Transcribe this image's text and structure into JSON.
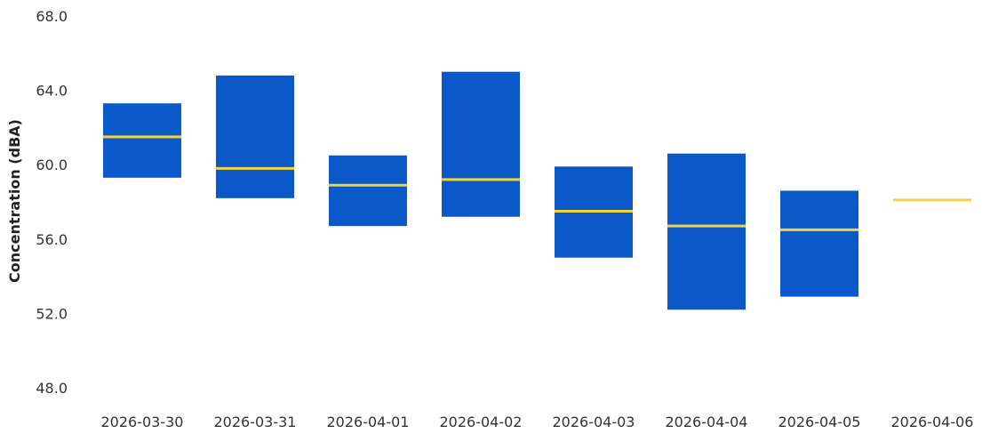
{
  "chart_data": {
    "type": "box",
    "ylabel": "Concentration (dBA)",
    "xlabel": "",
    "title": "",
    "ylim": [
      48.0,
      68.0
    ],
    "yticks": [
      "48.0",
      "52.0",
      "56.0",
      "60.0",
      "64.0",
      "68.0"
    ],
    "grid": false,
    "categories": [
      "2026-03-30",
      "2026-03-31",
      "2026-04-01",
      "2026-04-02",
      "2026-04-03",
      "2026-04-04",
      "2026-04-05",
      "2026-04-06"
    ],
    "boxes": [
      {
        "category": "2026-03-30",
        "q1": 59.3,
        "median": 61.5,
        "q3": 63.3
      },
      {
        "category": "2026-03-31",
        "q1": 58.2,
        "median": 59.8,
        "q3": 64.8
      },
      {
        "category": "2026-04-01",
        "q1": 56.7,
        "median": 58.9,
        "q3": 60.5
      },
      {
        "category": "2026-04-02",
        "q1": 57.2,
        "median": 59.2,
        "q3": 65.0
      },
      {
        "category": "2026-04-03",
        "q1": 55.0,
        "median": 57.5,
        "q3": 59.9
      },
      {
        "category": "2026-04-04",
        "q1": 52.2,
        "median": 56.7,
        "q3": 60.6
      },
      {
        "category": "2026-04-05",
        "q1": 52.9,
        "median": 56.5,
        "q3": 58.6
      },
      {
        "category": "2026-04-06",
        "q1": 58.1,
        "median": 58.1,
        "q3": 58.1
      }
    ],
    "colors": {
      "box": "#0b59c9",
      "median": "#f2d33b",
      "text": "#333333"
    }
  }
}
